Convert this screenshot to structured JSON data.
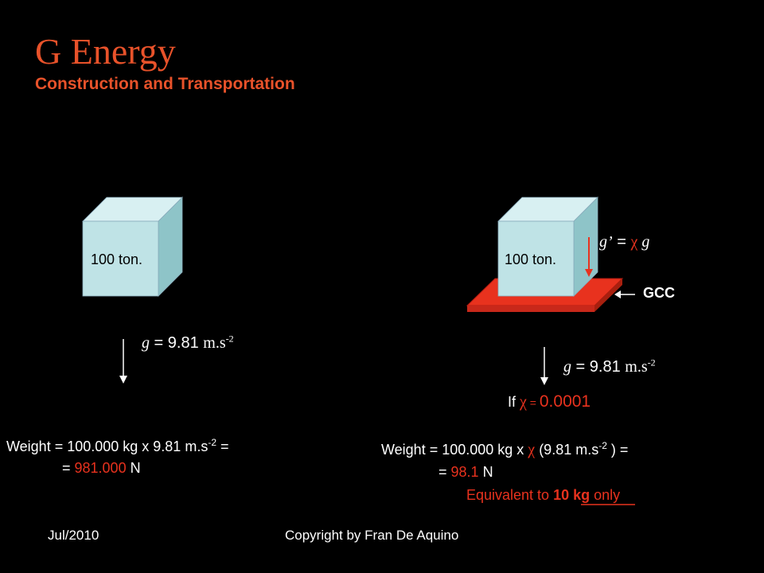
{
  "title": "G Energy",
  "subtitle": "Construction and Transportation",
  "left_block": {
    "cube_label": "100 ton.",
    "g_symbol": "g",
    "g_eq": " = 9.81 ",
    "g_unit": "m.s",
    "g_exp": "-2",
    "weight_line1_a": "Weight = 100.000 kg x 9.81 m.s",
    "weight_line1_exp": "-2",
    "weight_line1_b": " =",
    "weight_line2_eq": "= ",
    "weight_value": "981.000",
    "weight_unit": " N"
  },
  "right_block": {
    "cube_label": "100 ton.",
    "gprime_g": "g",
    "gprime_prime": "’",
    "gprime_eq": " = ",
    "gprime_chi": "χ",
    "gprime_g2": " g",
    "gcc_label": "GCC",
    "g_symbol": "g",
    "g_eq": " = 9.81 ",
    "g_unit": "m.s",
    "g_exp": "-2",
    "if_label": "If ",
    "if_chi": "χ",
    "if_eq": " = ",
    "if_value": "0.0001",
    "weight_line1_a": "Weight = 100.000 kg  x  ",
    "weight_chi": "χ",
    "weight_line1_b": " (9.81 m.s",
    "weight_line1_exp": "-2",
    "weight_line1_c": " ) =",
    "weight_line2_eq": "= ",
    "weight_value": "98.1",
    "weight_unit": " N",
    "equiv_a": "Equivalent to ",
    "equiv_b": "10 kg ",
    "equiv_c": "only"
  },
  "footer": {
    "date": "Jul/2010",
    "copyright": "Copyright by Fran De Aquino"
  },
  "colors": {
    "accent": "#e8522a",
    "red": "#e8321e",
    "cube_front": "#bfe3e6",
    "cube_top": "#d8f0f2",
    "cube_side": "#8ec4c8",
    "gcc_plate": "#e8321e"
  }
}
